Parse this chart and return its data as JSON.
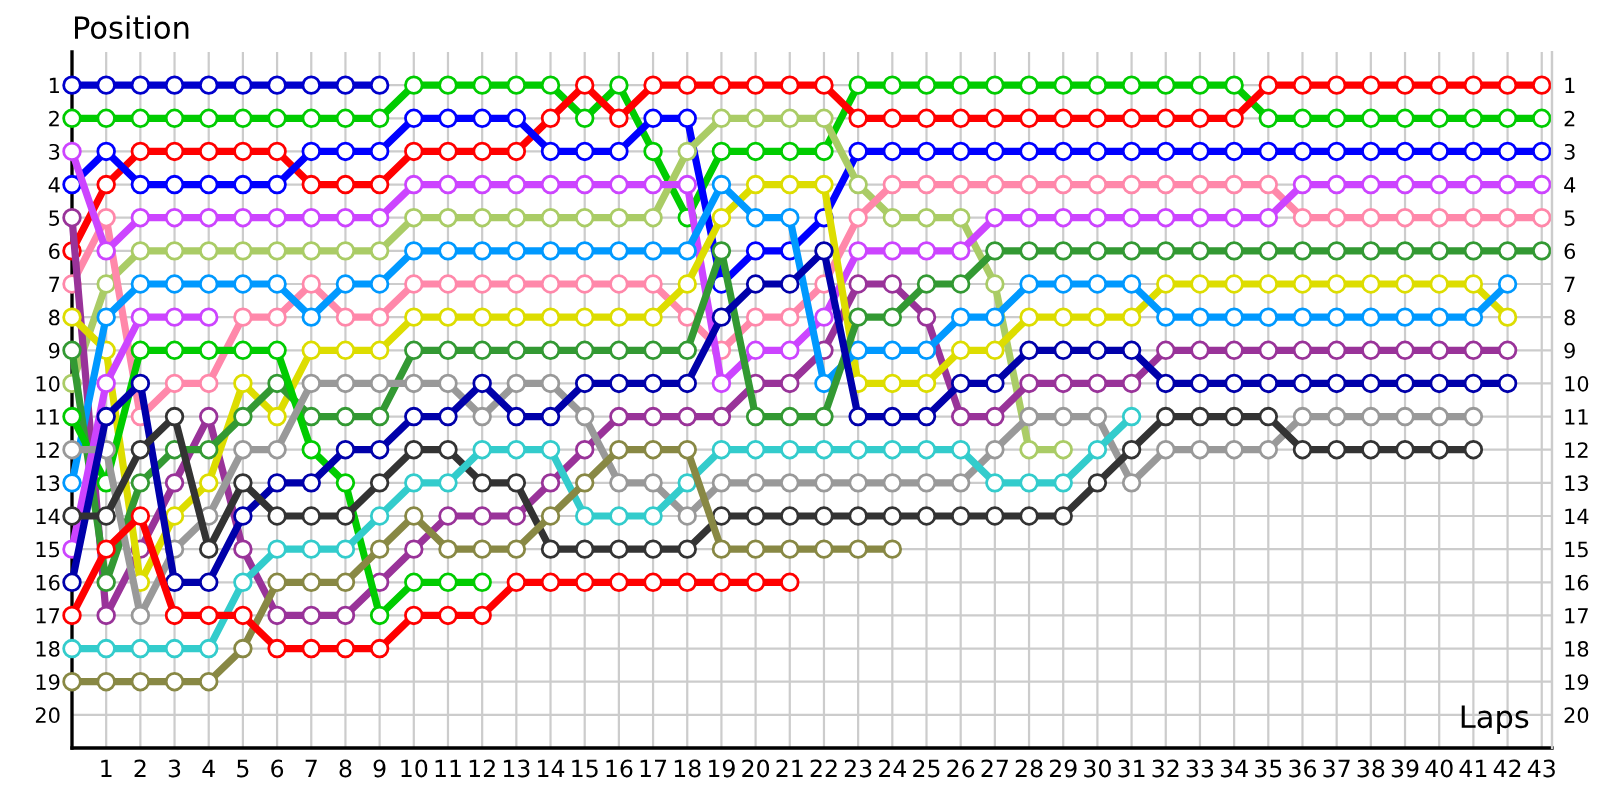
{
  "chart_data": {
    "type": "line",
    "xlabel": "Laps",
    "ylabel": "Position",
    "x": [
      0,
      1,
      2,
      3,
      4,
      5,
      6,
      7,
      8,
      9,
      10,
      11,
      12,
      13,
      14,
      15,
      16,
      17,
      18,
      19,
      20,
      21,
      22,
      23,
      24,
      25,
      26,
      27,
      28,
      29,
      30,
      31,
      32,
      33,
      34,
      35,
      36,
      37,
      38,
      39,
      40,
      41,
      42,
      43
    ],
    "xlim": [
      0,
      43.3
    ],
    "xticks": [
      1,
      2,
      3,
      4,
      5,
      6,
      7,
      8,
      9,
      10,
      11,
      12,
      13,
      14,
      15,
      16,
      17,
      18,
      19,
      20,
      21,
      22,
      23,
      24,
      25,
      26,
      27,
      28,
      29,
      30,
      31,
      32,
      33,
      34,
      35,
      36,
      37,
      38,
      39,
      40,
      41,
      42,
      43
    ],
    "ylim": [
      21,
      0
    ],
    "yticks": [
      1,
      2,
      3,
      4,
      5,
      6,
      7,
      8,
      9,
      10,
      11,
      12,
      13,
      14,
      15,
      16,
      17,
      18,
      19,
      20
    ],
    "y2lim": [
      21,
      0
    ],
    "y2ticks": [
      1,
      2,
      3,
      4,
      5,
      6,
      7,
      8,
      9,
      10,
      11,
      12,
      13,
      14,
      15,
      16,
      17,
      18,
      19,
      20
    ],
    "grid": true,
    "marker": "circle",
    "line_style": "solid",
    "series": [
      {
        "color": "#0000cc",
        "values": [
          1,
          1,
          1,
          1,
          1,
          1,
          1,
          1,
          1,
          1,
          null,
          null,
          null,
          null,
          null,
          null,
          null,
          null,
          null,
          null,
          null,
          null,
          null,
          null,
          null,
          null,
          null,
          null,
          null,
          null,
          null,
          null,
          null,
          null,
          null,
          null,
          null,
          null,
          null,
          null,
          null,
          null,
          null,
          null
        ]
      },
      {
        "color": "#00cc00",
        "values": [
          2,
          2,
          2,
          2,
          2,
          2,
          2,
          2,
          2,
          2,
          1,
          1,
          1,
          1,
          1,
          2,
          1,
          3,
          5,
          3,
          3,
          3,
          3,
          1,
          1,
          1,
          1,
          1,
          1,
          1,
          1,
          1,
          1,
          1,
          1,
          2,
          2,
          2,
          2,
          2,
          2,
          2,
          2,
          2
        ]
      },
      {
        "color": "#ff0000",
        "values": [
          6,
          4,
          3,
          3,
          3,
          3,
          3,
          4,
          4,
          4,
          3,
          3,
          3,
          3,
          2,
          1,
          2,
          1,
          1,
          1,
          1,
          1,
          1,
          2,
          2,
          2,
          2,
          2,
          2,
          2,
          2,
          2,
          2,
          2,
          2,
          1,
          1,
          1,
          1,
          1,
          1,
          1,
          1,
          1
        ]
      },
      {
        "color": "#0000ff",
        "values": [
          4,
          3,
          4,
          4,
          4,
          4,
          4,
          3,
          3,
          3,
          2,
          2,
          2,
          2,
          3,
          3,
          3,
          2,
          2,
          7,
          6,
          6,
          5,
          3,
          3,
          3,
          3,
          3,
          3,
          3,
          3,
          3,
          3,
          3,
          3,
          3,
          3,
          3,
          3,
          3,
          3,
          3,
          3,
          3
        ]
      },
      {
        "color": "#aacc66",
        "values": [
          10,
          7,
          6,
          6,
          6,
          6,
          6,
          6,
          6,
          6,
          5,
          5,
          5,
          5,
          5,
          5,
          5,
          5,
          3,
          2,
          2,
          2,
          2,
          4,
          5,
          5,
          5,
          7,
          12,
          12,
          null,
          null,
          null,
          null,
          null,
          null,
          null,
          null,
          null,
          null,
          null,
          null,
          null,
          null
        ]
      },
      {
        "color": "#ff88aa",
        "values": [
          7,
          5,
          11,
          10,
          10,
          8,
          8,
          7,
          8,
          8,
          7,
          7,
          7,
          7,
          7,
          7,
          7,
          7,
          8,
          9,
          8,
          8,
          7,
          5,
          4,
          4,
          4,
          4,
          4,
          4,
          4,
          4,
          4,
          4,
          4,
          4,
          5,
          5,
          5,
          5,
          5,
          5,
          5,
          5
        ]
      },
      {
        "color": "#cc44ff",
        "values": [
          3,
          6,
          5,
          5,
          5,
          5,
          5,
          5,
          5,
          5,
          4,
          4,
          4,
          4,
          4,
          4,
          4,
          4,
          4,
          10,
          9,
          9,
          8,
          6,
          6,
          6,
          6,
          5,
          5,
          5,
          5,
          5,
          5,
          5,
          5,
          5,
          4,
          4,
          4,
          4,
          4,
          4,
          4,
          4
        ]
      },
      {
        "color": "#993399",
        "values": [
          5,
          17,
          15,
          13,
          11,
          15,
          17,
          17,
          17,
          16,
          15,
          14,
          14,
          14,
          13,
          12,
          11,
          11,
          11,
          11,
          10,
          10,
          9,
          7,
          7,
          8,
          11,
          11,
          10,
          10,
          10,
          10,
          9,
          9,
          9,
          9,
          9,
          9,
          9,
          9,
          9,
          9,
          9,
          null
        ]
      },
      {
        "color": "#dddd00",
        "values": [
          8,
          9,
          16,
          14,
          13,
          10,
          11,
          9,
          9,
          9,
          8,
          8,
          8,
          8,
          8,
          8,
          8,
          8,
          7,
          5,
          4,
          4,
          4,
          10,
          10,
          10,
          9,
          9,
          8,
          8,
          8,
          8,
          7,
          7,
          7,
          7,
          7,
          7,
          7,
          7,
          7,
          7,
          8,
          null
        ]
      },
      {
        "color": "#0099ff",
        "values": [
          13,
          8,
          7,
          7,
          7,
          7,
          7,
          8,
          7,
          7,
          6,
          6,
          6,
          6,
          6,
          6,
          6,
          6,
          6,
          4,
          5,
          5,
          10,
          9,
          9,
          9,
          8,
          8,
          7,
          7,
          7,
          7,
          8,
          8,
          8,
          8,
          8,
          8,
          8,
          8,
          8,
          8,
          7,
          null
        ]
      },
      {
        "color": "#339933",
        "values": [
          9,
          16,
          13,
          12,
          12,
          11,
          10,
          11,
          11,
          11,
          9,
          9,
          9,
          9,
          9,
          9,
          9,
          9,
          9,
          6,
          11,
          11,
          11,
          8,
          8,
          7,
          7,
          6,
          6,
          6,
          6,
          6,
          6,
          6,
          6,
          6,
          6,
          6,
          6,
          6,
          6,
          6,
          6,
          6
        ]
      },
      {
        "color": "#00cc00",
        "values": [
          11,
          13,
          9,
          9,
          9,
          9,
          9,
          12,
          13,
          17,
          16,
          16,
          16,
          null,
          null,
          null,
          null,
          null,
          null,
          null,
          null,
          null,
          null,
          null,
          null,
          null,
          null,
          null,
          null,
          null,
          null,
          null,
          null,
          null,
          null,
          null,
          null,
          null,
          null,
          null,
          null,
          null,
          null,
          null
        ]
      },
      {
        "color": "#cc44ff",
        "values": [
          15,
          10,
          8,
          8,
          8,
          null,
          null,
          null,
          null,
          null,
          null,
          null,
          null,
          null,
          null,
          null,
          null,
          null,
          null,
          null,
          null,
          null,
          null,
          null,
          null,
          null,
          null,
          null,
          null,
          null,
          null,
          null,
          null,
          null,
          null,
          null,
          null,
          null,
          null,
          null,
          null,
          null,
          null,
          null
        ]
      },
      {
        "color": "#999999",
        "values": [
          12,
          12,
          17,
          15,
          14,
          12,
          12,
          10,
          10,
          10,
          10,
          10,
          11,
          10,
          10,
          11,
          13,
          13,
          14,
          13,
          13,
          13,
          13,
          13,
          13,
          13,
          13,
          12,
          11,
          11,
          11,
          13,
          12,
          12,
          12,
          12,
          11,
          11,
          11,
          11,
          11,
          11,
          null,
          null
        ]
      },
      {
        "color": "#0000aa",
        "values": [
          16,
          11,
          10,
          16,
          16,
          14,
          13,
          13,
          12,
          12,
          11,
          11,
          10,
          11,
          11,
          10,
          10,
          10,
          10,
          8,
          7,
          7,
          6,
          11,
          11,
          11,
          10,
          10,
          9,
          9,
          9,
          9,
          10,
          10,
          10,
          10,
          10,
          10,
          10,
          10,
          10,
          10,
          10,
          null
        ]
      },
      {
        "color": "#333333",
        "values": [
          14,
          14,
          12,
          11,
          15,
          13,
          14,
          14,
          14,
          13,
          12,
          12,
          13,
          13,
          15,
          15,
          15,
          15,
          15,
          14,
          14,
          14,
          14,
          14,
          14,
          14,
          14,
          14,
          14,
          14,
          13,
          12,
          11,
          11,
          11,
          11,
          12,
          12,
          12,
          12,
          12,
          12,
          null,
          null
        ]
      },
      {
        "color": "#33cccc",
        "values": [
          18,
          18,
          18,
          18,
          18,
          16,
          15,
          15,
          15,
          14,
          13,
          13,
          12,
          12,
          12,
          14,
          14,
          14,
          13,
          12,
          12,
          12,
          12,
          12,
          12,
          12,
          12,
          13,
          13,
          13,
          12,
          11,
          null,
          null,
          null,
          null,
          null,
          null,
          null,
          null,
          null,
          null,
          null,
          null
        ]
      },
      {
        "color": "#888844",
        "values": [
          19,
          19,
          19,
          19,
          19,
          18,
          16,
          16,
          16,
          15,
          14,
          15,
          15,
          15,
          14,
          13,
          12,
          12,
          12,
          15,
          15,
          15,
          15,
          15,
          15,
          null,
          null,
          null,
          null,
          null,
          null,
          null,
          null,
          null,
          null,
          null,
          null,
          null,
          null,
          null,
          null,
          null,
          null,
          null
        ]
      },
      {
        "color": "#ff0000",
        "values": [
          17,
          15,
          14,
          17,
          17,
          17,
          18,
          18,
          18,
          18,
          17,
          17,
          17,
          16,
          16,
          16,
          16,
          16,
          16,
          16,
          16,
          16,
          null,
          null,
          null,
          null,
          null,
          null,
          null,
          null,
          null,
          null,
          null,
          null,
          null,
          null,
          null,
          null,
          null,
          null,
          null,
          null,
          null,
          null
        ]
      }
    ]
  }
}
